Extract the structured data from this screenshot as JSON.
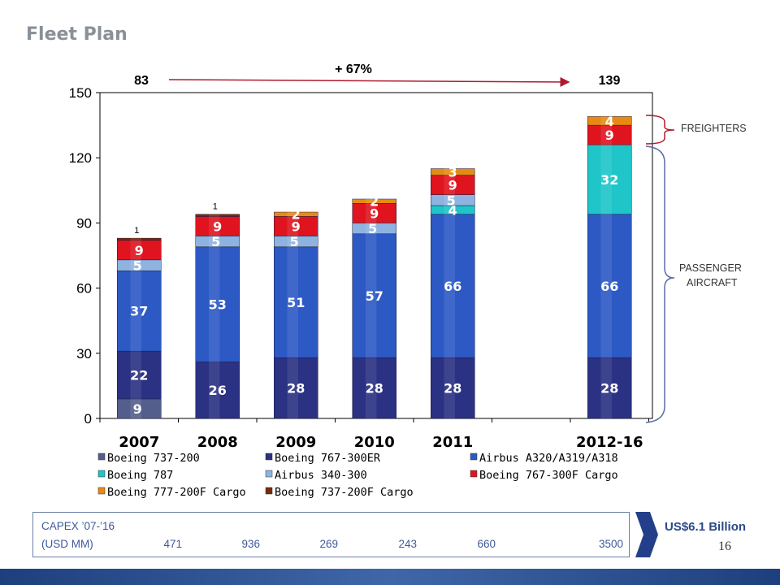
{
  "page": {
    "title": "Fleet Plan",
    "page_number": "16"
  },
  "growth": {
    "start": "83",
    "end": "139",
    "change": "+ 67%"
  },
  "braces": {
    "freighters": "FREIGHTERS",
    "passenger_line1": "PASSENGER",
    "passenger_line2": "AIRCRAFT"
  },
  "capex": {
    "label_line1": "CAPEX ’07-’16",
    "label_line2": "(USD MM)",
    "values": [
      "471",
      "936",
      "269",
      "243",
      "660",
      "3500"
    ],
    "total": "US$6.1 Billion"
  },
  "colors": {
    "accent_red": "#b01a2e",
    "brand_blue": "#2a4a8a"
  },
  "chart_data": {
    "type": "bar",
    "stacked": true,
    "categories": [
      "2007",
      "2008",
      "2009",
      "2010",
      "2011",
      "2012-16"
    ],
    "category_slots": [
      0,
      1,
      2,
      3,
      4,
      6
    ],
    "ylim": [
      0,
      150
    ],
    "yticks": [
      "0",
      "30",
      "60",
      "90",
      "120",
      "150"
    ],
    "series": [
      {
        "name": "Boeing 737-200",
        "color": "#545e8c",
        "values": [
          9,
          0,
          0,
          0,
          0,
          0
        ],
        "labels": [
          "9",
          "",
          "",
          "",
          "",
          ""
        ]
      },
      {
        "name": "Boeing 767-300ER",
        "color": "#2b3183",
        "values": [
          22,
          26,
          28,
          28,
          28,
          28
        ],
        "labels": [
          "22",
          "26",
          "28",
          "28",
          "28",
          "28"
        ]
      },
      {
        "name": "Airbus A320/A319/A318",
        "color": "#2c59c4",
        "values": [
          37,
          53,
          51,
          57,
          66,
          66
        ],
        "labels": [
          "37",
          "53",
          "51",
          "57",
          "66",
          "66"
        ]
      },
      {
        "name": "Boeing 787",
        "color": "#1fc5c8",
        "values": [
          0,
          0,
          0,
          0,
          4,
          32
        ],
        "labels": [
          "",
          "",
          "",
          "",
          "4",
          "32"
        ]
      },
      {
        "name": "Airbus 340-300",
        "color": "#8fb3e0",
        "values": [
          5,
          5,
          5,
          5,
          5,
          0
        ],
        "labels": [
          "5",
          "5",
          "5",
          "5",
          "5",
          ""
        ]
      },
      {
        "name": "Boeing 767-300F Cargo",
        "color": "#e0141e",
        "values": [
          9,
          9,
          9,
          9,
          9,
          9
        ],
        "labels": [
          "9",
          "9",
          "9",
          "9",
          "9",
          "9"
        ]
      },
      {
        "name": "Boeing 777-200F Cargo",
        "color": "#e88a12",
        "values": [
          0,
          0,
          2,
          2,
          3,
          4
        ],
        "labels": [
          "",
          "",
          "2",
          "2",
          "3",
          "4"
        ]
      },
      {
        "name": "Boeing 737-200F Cargo",
        "color": "#7a2a0a",
        "values": [
          1,
          1,
          0,
          0,
          0,
          0
        ],
        "labels": [
          "1",
          "1",
          "",
          "",
          "",
          ""
        ]
      }
    ],
    "legend_position": "bottom"
  }
}
